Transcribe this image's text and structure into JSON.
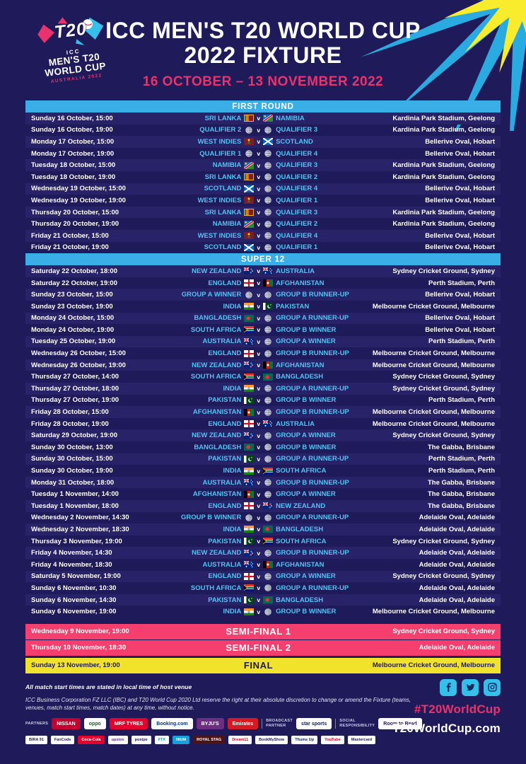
{
  "vs_label": "v",
  "colors": {
    "background": "#1f1a5a",
    "section_header": "#3aaee6",
    "team_text": "#4fc3f4",
    "accent_pink": "#e8336e",
    "semi_final_pink": "#f43f6f",
    "final_yellow": "#f1e32b"
  },
  "header": {
    "logo": {
      "t20": "T20",
      "icc": "ICC",
      "line1": "MEN'S T20",
      "line2": "WORLD CUP",
      "line3": "AUSTRALIA 2022"
    },
    "title_line1": "ICC MEN'S T20 WORLD CUP",
    "title_line2": "2022 FIXTURE",
    "date_range": "16 OCTOBER – 13 NOVEMBER 2022"
  },
  "sections": [
    {
      "name": "FIRST ROUND",
      "matches": [
        {
          "datetime": "Sunday 16 October, 15:00",
          "team1": {
            "name": "SRI LANKA",
            "flag": "sri-lanka"
          },
          "team2": {
            "name": "NAMIBIA",
            "flag": "namibia"
          },
          "venue": "Kardinia Park Stadium, Geelong"
        },
        {
          "datetime": "Sunday 16 October, 19:00",
          "team1": {
            "name": "QUALIFIER 2",
            "flag": "qualifier"
          },
          "team2": {
            "name": "QUALIFIER 3",
            "flag": "qualifier"
          },
          "venue": "Kardinia Park Stadium, Geelong"
        },
        {
          "datetime": "Monday 17 October, 15:00",
          "team1": {
            "name": "WEST INDIES",
            "flag": "west-indies"
          },
          "team2": {
            "name": "SCOTLAND",
            "flag": "scotland"
          },
          "venue": "Bellerive Oval, Hobart"
        },
        {
          "datetime": "Monday 17 October, 19:00",
          "team1": {
            "name": "QUALIFIER 1",
            "flag": "qualifier"
          },
          "team2": {
            "name": "QUALIFIER 4",
            "flag": "qualifier"
          },
          "venue": "Bellerive Oval, Hobart"
        },
        {
          "datetime": "Tuesday 18 October, 15:00",
          "team1": {
            "name": "NAMIBIA",
            "flag": "namibia"
          },
          "team2": {
            "name": "QUALIFIER 3",
            "flag": "qualifier"
          },
          "venue": "Kardinia Park Stadium, Geelong"
        },
        {
          "datetime": "Tuesday 18 October, 19:00",
          "team1": {
            "name": "SRI LANKA",
            "flag": "sri-lanka"
          },
          "team2": {
            "name": "QUALIFIER 2",
            "flag": "qualifier"
          },
          "venue": "Kardinia Park Stadium, Geelong"
        },
        {
          "datetime": "Wednesday 19 October, 15:00",
          "team1": {
            "name": "SCOTLAND",
            "flag": "scotland"
          },
          "team2": {
            "name": "QUALIFIER 4",
            "flag": "qualifier"
          },
          "venue": "Bellerive Oval, Hobart"
        },
        {
          "datetime": "Wednesday 19 October, 19:00",
          "team1": {
            "name": "WEST INDIES",
            "flag": "west-indies"
          },
          "team2": {
            "name": "QUALIFIER 1",
            "flag": "qualifier"
          },
          "venue": "Bellerive Oval, Hobart"
        },
        {
          "datetime": "Thursday 20 October, 15:00",
          "team1": {
            "name": "SRI LANKA",
            "flag": "sri-lanka"
          },
          "team2": {
            "name": "QUALIFIER 3",
            "flag": "qualifier"
          },
          "venue": "Kardinia Park Stadium, Geelong"
        },
        {
          "datetime": "Thursday 20 October, 19:00",
          "team1": {
            "name": "NAMIBIA",
            "flag": "namibia"
          },
          "team2": {
            "name": "QUALIFIER 2",
            "flag": "qualifier"
          },
          "venue": "Kardinia Park Stadium, Geelong"
        },
        {
          "datetime": "Friday 21 October, 15:00",
          "team1": {
            "name": "WEST INDIES",
            "flag": "west-indies"
          },
          "team2": {
            "name": "QUALIFIER 4",
            "flag": "qualifier"
          },
          "venue": "Bellerive Oval, Hobart"
        },
        {
          "datetime": "Friday 21 October, 19:00",
          "team1": {
            "name": "SCOTLAND",
            "flag": "scotland"
          },
          "team2": {
            "name": "QUALIFIER 1",
            "flag": "qualifier"
          },
          "venue": "Bellerive Oval, Hobart"
        }
      ]
    },
    {
      "name": "SUPER 12",
      "matches": [
        {
          "datetime": "Saturday 22 October, 18:00",
          "team1": {
            "name": "NEW ZEALAND",
            "flag": "new-zealand"
          },
          "team2": {
            "name": "AUSTRALIA",
            "flag": "australia"
          },
          "venue": "Sydney Cricket Ground, Sydney"
        },
        {
          "datetime": "Saturday 22 October, 19:00",
          "team1": {
            "name": "ENGLAND",
            "flag": "england"
          },
          "team2": {
            "name": "AFGHANISTAN",
            "flag": "afghanistan"
          },
          "venue": "Perth Stadium, Perth"
        },
        {
          "datetime": "Sunday 23 October, 15:00",
          "team1": {
            "name": "GROUP A WINNER",
            "flag": "qualifier"
          },
          "team2": {
            "name": "GROUP B RUNNER-UP",
            "flag": "qualifier"
          },
          "venue": "Bellerive Oval, Hobart"
        },
        {
          "datetime": "Sunday 23 October, 19:00",
          "team1": {
            "name": "INDIA",
            "flag": "india"
          },
          "team2": {
            "name": "PAKISTAN",
            "flag": "pakistan"
          },
          "venue": "Melbourne Cricket Ground, Melbourne"
        },
        {
          "datetime": "Monday 24 October, 15:00",
          "team1": {
            "name": "BANGLADESH",
            "flag": "bangladesh"
          },
          "team2": {
            "name": "GROUP A RUNNER-UP",
            "flag": "qualifier"
          },
          "venue": "Bellerive Oval, Hobart"
        },
        {
          "datetime": "Monday 24 October, 19:00",
          "team1": {
            "name": "SOUTH AFRICA",
            "flag": "south-africa"
          },
          "team2": {
            "name": "GROUP B WINNER",
            "flag": "qualifier"
          },
          "venue": "Bellerive Oval, Hobart"
        },
        {
          "datetime": "Tuesday 25 October, 19:00",
          "team1": {
            "name": "AUSTRALIA",
            "flag": "australia"
          },
          "team2": {
            "name": "GROUP A WINNER",
            "flag": "qualifier"
          },
          "venue": "Perth Stadium, Perth"
        },
        {
          "datetime": "Wednesday 26 October, 15:00",
          "team1": {
            "name": "ENGLAND",
            "flag": "england"
          },
          "team2": {
            "name": "GROUP B RUNNER-UP",
            "flag": "qualifier"
          },
          "venue": "Melbourne Cricket Ground, Melbourne"
        },
        {
          "datetime": "Wednesday 26 October, 19:00",
          "team1": {
            "name": "NEW ZEALAND",
            "flag": "new-zealand"
          },
          "team2": {
            "name": "AFGHANISTAN",
            "flag": "afghanistan"
          },
          "venue": "Melbourne Cricket Ground, Melbourne"
        },
        {
          "datetime": "Thursday 27 October, 14:00",
          "team1": {
            "name": "SOUTH AFRICA",
            "flag": "south-africa"
          },
          "team2": {
            "name": "BANGLADESH",
            "flag": "bangladesh"
          },
          "venue": "Sydney Cricket Ground, Sydney"
        },
        {
          "datetime": "Thursday 27 October, 18:00",
          "team1": {
            "name": "INDIA",
            "flag": "india"
          },
          "team2": {
            "name": "GROUP A RUNNER-UP",
            "flag": "qualifier"
          },
          "venue": "Sydney Cricket Ground, Sydney"
        },
        {
          "datetime": "Thursday 27 October, 19:00",
          "team1": {
            "name": "PAKISTAN",
            "flag": "pakistan"
          },
          "team2": {
            "name": "GROUP B WINNER",
            "flag": "qualifier"
          },
          "venue": "Perth Stadium, Perth"
        },
        {
          "datetime": "Friday 28 October, 15:00",
          "team1": {
            "name": "AFGHANISTAN",
            "flag": "afghanistan"
          },
          "team2": {
            "name": "GROUP B RUNNER-UP",
            "flag": "qualifier"
          },
          "venue": "Melbourne Cricket Ground, Melbourne"
        },
        {
          "datetime": "Friday 28 October, 19:00",
          "team1": {
            "name": "ENGLAND",
            "flag": "england"
          },
          "team2": {
            "name": "AUSTRALIA",
            "flag": "australia"
          },
          "venue": "Melbourne Cricket Ground, Melbourne"
        },
        {
          "datetime": "Saturday 29 October, 19:00",
          "team1": {
            "name": "NEW ZEALAND",
            "flag": "new-zealand"
          },
          "team2": {
            "name": "GROUP A WINNER",
            "flag": "qualifier"
          },
          "venue": "Sydney Cricket Ground, Sydney"
        },
        {
          "datetime": "Sunday 30 October, 13:00",
          "team1": {
            "name": "BANGLADESH",
            "flag": "bangladesh"
          },
          "team2": {
            "name": "GROUP B WINNER",
            "flag": "qualifier"
          },
          "venue": "The Gabba, Brisbane"
        },
        {
          "datetime": "Sunday 30 October, 15:00",
          "team1": {
            "name": "PAKISTAN",
            "flag": "pakistan"
          },
          "team2": {
            "name": "GROUP A RUNNER-UP",
            "flag": "qualifier"
          },
          "venue": "Perth Stadium, Perth"
        },
        {
          "datetime": "Sunday 30 October, 19:00",
          "team1": {
            "name": "INDIA",
            "flag": "india"
          },
          "team2": {
            "name": "SOUTH AFRICA",
            "flag": "south-africa"
          },
          "venue": "Perth Stadium, Perth"
        },
        {
          "datetime": "Monday 31 October, 18:00",
          "team1": {
            "name": "AUSTRALIA",
            "flag": "australia"
          },
          "team2": {
            "name": "GROUP B RUNNER-UP",
            "flag": "qualifier"
          },
          "venue": "The Gabba, Brisbane"
        },
        {
          "datetime": "Tuesday 1 November, 14:00",
          "team1": {
            "name": "AFGHANISTAN",
            "flag": "afghanistan"
          },
          "team2": {
            "name": "GROUP A WINNER",
            "flag": "qualifier"
          },
          "venue": "The Gabba, Brisbane"
        },
        {
          "datetime": "Tuesday 1 November, 18:00",
          "team1": {
            "name": "ENGLAND",
            "flag": "england"
          },
          "team2": {
            "name": "NEW ZEALAND",
            "flag": "new-zealand"
          },
          "venue": "The Gabba, Brisbane"
        },
        {
          "datetime": "Wednesday 2 November, 14:30",
          "team1": {
            "name": "GROUP B WINNER",
            "flag": "qualifier"
          },
          "team2": {
            "name": "GROUP A RUNNER-UP",
            "flag": "qualifier"
          },
          "venue": "Adelaide Oval, Adelaide"
        },
        {
          "datetime": "Wednesday 2 November, 18:30",
          "team1": {
            "name": "INDIA",
            "flag": "india"
          },
          "team2": {
            "name": "BANGLADESH",
            "flag": "bangladesh"
          },
          "venue": "Adelaide Oval, Adelaide"
        },
        {
          "datetime": "Thursday 3 November, 19:00",
          "team1": {
            "name": "PAKISTAN",
            "flag": "pakistan"
          },
          "team2": {
            "name": "SOUTH AFRICA",
            "flag": "south-africa"
          },
          "venue": "Sydney Cricket Ground, Sydney"
        },
        {
          "datetime": "Friday 4 November, 14:30",
          "team1": {
            "name": "NEW ZEALAND",
            "flag": "new-zealand"
          },
          "team2": {
            "name": "GROUP B RUNNER-UP",
            "flag": "qualifier"
          },
          "venue": "Adelaide Oval, Adelaide"
        },
        {
          "datetime": "Friday 4 November, 18:30",
          "team1": {
            "name": "AUSTRALIA",
            "flag": "australia"
          },
          "team2": {
            "name": "AFGHANISTAN",
            "flag": "afghanistan"
          },
          "venue": "Adelaide Oval, Adelaide"
        },
        {
          "datetime": "Saturday 5 November, 19:00",
          "team1": {
            "name": "ENGLAND",
            "flag": "england"
          },
          "team2": {
            "name": "GROUP A WINNER",
            "flag": "qualifier"
          },
          "venue": "Sydney Cricket Ground, Sydney"
        },
        {
          "datetime": "Sunday 6 November, 10:30",
          "team1": {
            "name": "SOUTH AFRICA",
            "flag": "south-africa"
          },
          "team2": {
            "name": "GROUP A RUNNER-UP",
            "flag": "qualifier"
          },
          "venue": "Adelaide Oval, Adelaide"
        },
        {
          "datetime": "Sunday 6 November, 14:30",
          "team1": {
            "name": "PAKISTAN",
            "flag": "pakistan"
          },
          "team2": {
            "name": "BANGLADESH",
            "flag": "bangladesh"
          },
          "venue": "Adelaide Oval, Adelaide"
        },
        {
          "datetime": "Sunday 6 November, 19:00",
          "team1": {
            "name": "INDIA",
            "flag": "india"
          },
          "team2": {
            "name": "GROUP B WINNER",
            "flag": "qualifier"
          },
          "venue": "Melbourne Cricket Ground, Melbourne"
        }
      ]
    }
  ],
  "knockouts": [
    {
      "datetime": "Wednesday 9 November, 19:00",
      "label": "SEMI-FINAL 1",
      "venue": "Sydney Cricket Ground, Sydney",
      "style": "semi"
    },
    {
      "datetime": "Thursday 10 November, 18:30",
      "label": "SEMI-FINAL 2",
      "venue": "Adelaide Oval, Adelaide",
      "style": "semi"
    },
    {
      "datetime": "Sunday 13 November, 19:00",
      "label": "FINAL",
      "venue": "Melbourne Cricket Ground, Melbourne",
      "style": "final"
    }
  ],
  "footer": {
    "note": "All match start times are stated in local time of host venue",
    "disclaimer": "ICC Business Corporation FZ LLC (IBC) and T20 World Cup 2020 Ltd reserve the right at their absolute discretion to change or amend the Fixture (teams, venues, match start times, match dates) at any time, without notice.",
    "partners_label": "PARTNERS",
    "broadcast_label": "BROADCAST\nPARTNER",
    "social_label": "SOCIAL\nRESPONSIBILITY",
    "partners_row1": [
      {
        "name": "nissan",
        "label": "NISSAN",
        "bg": "#c3002f",
        "fg": "#ffffff"
      },
      {
        "name": "oppo",
        "label": "oppo",
        "bg": "#ffffff",
        "fg": "#1b5e20"
      },
      {
        "name": "mrf-tyres",
        "label": "MRF TYRES",
        "bg": "#e4002b",
        "fg": "#ffffff"
      },
      {
        "name": "booking-com",
        "label": "Booking.com",
        "bg": "#ffffff",
        "fg": "#003580"
      },
      {
        "name": "byjus",
        "label": "BYJU'S",
        "bg": "#6c2d83",
        "fg": "#ffffff"
      },
      {
        "name": "emirates",
        "label": "Emirates",
        "bg": "#d71921",
        "fg": "#ffffff"
      }
    ],
    "broadcast_partner": {
      "name": "star-sports",
      "label": "star sports",
      "bg": "#ffffff",
      "fg": "#0b2265"
    },
    "social_partner": {
      "name": "room-to-read",
      "label": "Room to Read",
      "bg": "#ffffff",
      "fg": "#1f1a5a"
    },
    "partners_row2": [
      {
        "name": "bira-91",
        "label": "BIRA 91",
        "bg": "#ffffff",
        "fg": "#1f1a5a"
      },
      {
        "name": "fancode",
        "label": "FanCode",
        "bg": "#ffffff",
        "fg": "#1f1a5a"
      },
      {
        "name": "coca-cola",
        "label": "Coca-Cola",
        "bg": "#e4002b",
        "fg": "#ffffff"
      },
      {
        "name": "upstox",
        "label": "upstox",
        "bg": "#ffffff",
        "fg": "#5a2d82"
      },
      {
        "name": "postpe",
        "label": "postpe",
        "bg": "#ffffff",
        "fg": "#1f1a5a"
      },
      {
        "name": "ftx",
        "label": "FTX",
        "bg": "#ffffff",
        "fg": "#02a6c2"
      },
      {
        "name": "nium",
        "label": "NIUM",
        "bg": "#17a0db",
        "fg": "#ffffff"
      },
      {
        "name": "royal-stag",
        "label": "ROYAL STAG",
        "bg": "#4a1518",
        "fg": "#ffffff"
      },
      {
        "name": "dream11",
        "label": "Dream11",
        "bg": "#ffffff",
        "fg": "#d0021b"
      },
      {
        "name": "bookmyshow",
        "label": "BookMyShow",
        "bg": "#ffffff",
        "fg": "#1f1a5a"
      },
      {
        "name": "thums-up",
        "label": "Thums Up",
        "bg": "#ffffff",
        "fg": "#0b2265"
      },
      {
        "name": "youtube",
        "label": "YouTube",
        "bg": "#ffffff",
        "fg": "#d0021b"
      },
      {
        "name": "mastercard",
        "label": "Mastercard",
        "bg": "#ffffff",
        "fg": "#1f1a5a"
      }
    ],
    "social_icons": [
      {
        "name": "facebook"
      },
      {
        "name": "twitter"
      },
      {
        "name": "instagram"
      }
    ],
    "hashtag": "#T20WorldCup",
    "website": "T20WorldCup.com"
  }
}
